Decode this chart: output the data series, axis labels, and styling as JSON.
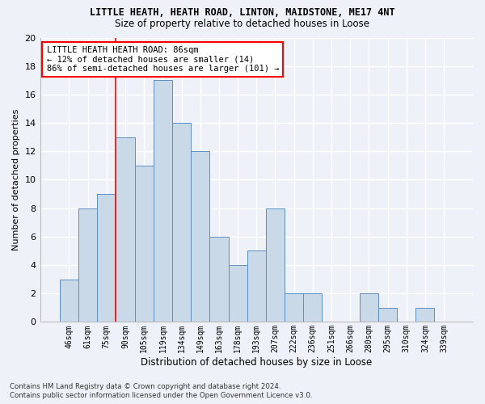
{
  "title": "LITTLE HEATH, HEATH ROAD, LINTON, MAIDSTONE, ME17 4NT",
  "subtitle": "Size of property relative to detached houses in Loose",
  "xlabel": "Distribution of detached houses by size in Loose",
  "ylabel": "Number of detached properties",
  "bar_labels": [
    "46sqm",
    "61sqm",
    "75sqm",
    "90sqm",
    "105sqm",
    "119sqm",
    "134sqm",
    "149sqm",
    "163sqm",
    "178sqm",
    "193sqm",
    "207sqm",
    "222sqm",
    "236sqm",
    "251sqm",
    "266sqm",
    "280sqm",
    "295sqm",
    "310sqm",
    "324sqm",
    "339sqm"
  ],
  "bar_values": [
    3,
    8,
    9,
    13,
    11,
    17,
    14,
    12,
    6,
    4,
    5,
    8,
    2,
    2,
    0,
    0,
    2,
    1,
    0,
    1,
    0
  ],
  "bar_color": "#c9d9e8",
  "bar_edgecolor": "#5b8fc9",
  "ylim": [
    0,
    20
  ],
  "yticks": [
    0,
    2,
    4,
    6,
    8,
    10,
    12,
    14,
    16,
    18,
    20
  ],
  "vline_x": 2.5,
  "annotation_line1": "LITTLE HEATH HEATH ROAD: 86sqm",
  "annotation_line2": "← 12% of detached houses are smaller (14)",
  "annotation_line3": "86% of semi-detached houses are larger (101) →",
  "footer_line1": "Contains HM Land Registry data © Crown copyright and database right 2024.",
  "footer_line2": "Contains public sector information licensed under the Open Government Licence v3.0.",
  "background_color": "#eef2f8",
  "grid_color": "#ffffff"
}
